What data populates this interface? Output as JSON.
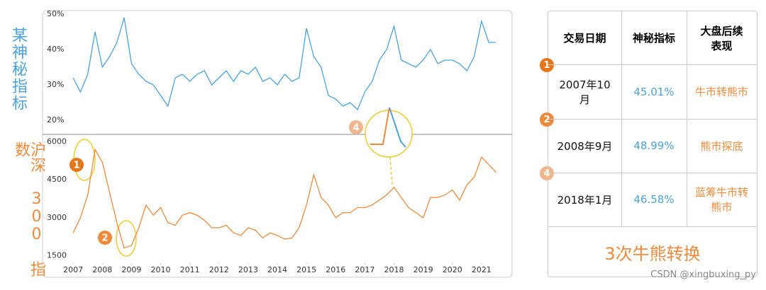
{
  "chart_data": [
    {
      "type": "line",
      "ylabel": "某神秘指标",
      "color": "#4aa3e0",
      "x": [
        2007.0,
        2007.25,
        2007.5,
        2007.75,
        2008.0,
        2008.25,
        2008.5,
        2008.75,
        2009.0,
        2009.25,
        2009.5,
        2009.75,
        2010.0,
        2010.25,
        2010.5,
        2010.75,
        2011.0,
        2011.25,
        2011.5,
        2011.75,
        2012.0,
        2012.25,
        2012.5,
        2012.75,
        2013.0,
        2013.25,
        2013.5,
        2013.75,
        2014.0,
        2014.25,
        2014.5,
        2014.75,
        2015.0,
        2015.25,
        2015.5,
        2015.75,
        2016.0,
        2016.25,
        2016.5,
        2016.75,
        2017.0,
        2017.25,
        2017.5,
        2017.75,
        2018.0,
        2018.25,
        2018.5,
        2018.75,
        2019.0,
        2019.25,
        2019.5,
        2019.75,
        2020.0,
        2020.25,
        2020.5,
        2020.75,
        2021.0,
        2021.25,
        2021.5
      ],
      "values": [
        32,
        28,
        33,
        45.01,
        35,
        38,
        42,
        48.99,
        36,
        33,
        31,
        30,
        27,
        24,
        32,
        33,
        31,
        33,
        34,
        30,
        32,
        34,
        31,
        34,
        33,
        35,
        31,
        32,
        30,
        33,
        31,
        32,
        46,
        38,
        35,
        27,
        26,
        24,
        25,
        23,
        28,
        31,
        37,
        40,
        46.58,
        37,
        36,
        35,
        37,
        40,
        36,
        37,
        37,
        36,
        34,
        38,
        48,
        42,
        42
      ],
      "xlim": [
        2006,
        2022
      ],
      "ylim": [
        16,
        51
      ],
      "yticks": [
        {
          "value": 20,
          "label": "20%"
        },
        {
          "value": 30,
          "label": "30%"
        },
        {
          "value": 40,
          "label": "40%"
        },
        {
          "value": 50,
          "label": "50%"
        }
      ]
    },
    {
      "type": "line",
      "ylabel": "沪深 300 指数",
      "color": "#f08a3a",
      "x": [
        2007.0,
        2007.25,
        2007.5,
        2007.75,
        2008.0,
        2008.25,
        2008.5,
        2008.75,
        2009.0,
        2009.25,
        2009.5,
        2009.75,
        2010.0,
        2010.25,
        2010.5,
        2010.75,
        2011.0,
        2011.25,
        2011.5,
        2011.75,
        2012.0,
        2012.25,
        2012.5,
        2012.75,
        2013.0,
        2013.25,
        2013.5,
        2013.75,
        2014.0,
        2014.25,
        2014.5,
        2014.75,
        2015.0,
        2015.25,
        2015.5,
        2015.75,
        2016.0,
        2016.25,
        2016.5,
        2016.75,
        2017.0,
        2017.25,
        2017.5,
        2017.75,
        2018.0,
        2018.25,
        2018.5,
        2018.75,
        2019.0,
        2019.25,
        2019.5,
        2019.75,
        2020.0,
        2020.25,
        2020.5,
        2020.75,
        2021.0,
        2021.25,
        2021.5
      ],
      "values": [
        2400,
        3000,
        3900,
        5700,
        5200,
        4000,
        2800,
        1800,
        1900,
        2600,
        3500,
        3100,
        3400,
        2800,
        2700,
        3100,
        3200,
        3100,
        2900,
        2600,
        2600,
        2700,
        2400,
        2300,
        2600,
        2500,
        2200,
        2400,
        2300,
        2150,
        2200,
        2600,
        3500,
        4700,
        3800,
        3500,
        3000,
        3200,
        3200,
        3400,
        3400,
        3500,
        3700,
        3900,
        4200,
        3800,
        3400,
        3200,
        3000,
        3800,
        3800,
        3900,
        4100,
        3700,
        4300,
        4600,
        5400,
        5100,
        4800
      ],
      "xlim": [
        2006,
        2022
      ],
      "ylim": [
        1200,
        6300
      ],
      "yticks": [
        1500,
        3000,
        4500,
        6000
      ],
      "xticks": [
        2007,
        2008,
        2009,
        2010,
        2011,
        2012,
        2013,
        2014,
        2015,
        2016,
        2017,
        2018,
        2019,
        2020,
        2021
      ],
      "markers": [
        "1",
        "2",
        "4"
      ]
    }
  ],
  "table": {
    "header": [
      "交易日期",
      "神秘指标",
      "大盘后续表现"
    ],
    "rows": [
      {
        "marker": "1",
        "cells": [
          "2007年10月",
          "45.01%",
          "牛市转熊市"
        ]
      },
      {
        "marker": "2",
        "cells": [
          "2008年9月",
          "48.99%",
          "熊市探底"
        ]
      },
      {
        "marker": "4",
        "cells": [
          "2018年1月",
          "46.58%",
          "蓝筹牛市转熊市"
        ]
      }
    ],
    "footer": "3次牛熊转换"
  },
  "watermark": "CSDN @xingbuxing_py"
}
